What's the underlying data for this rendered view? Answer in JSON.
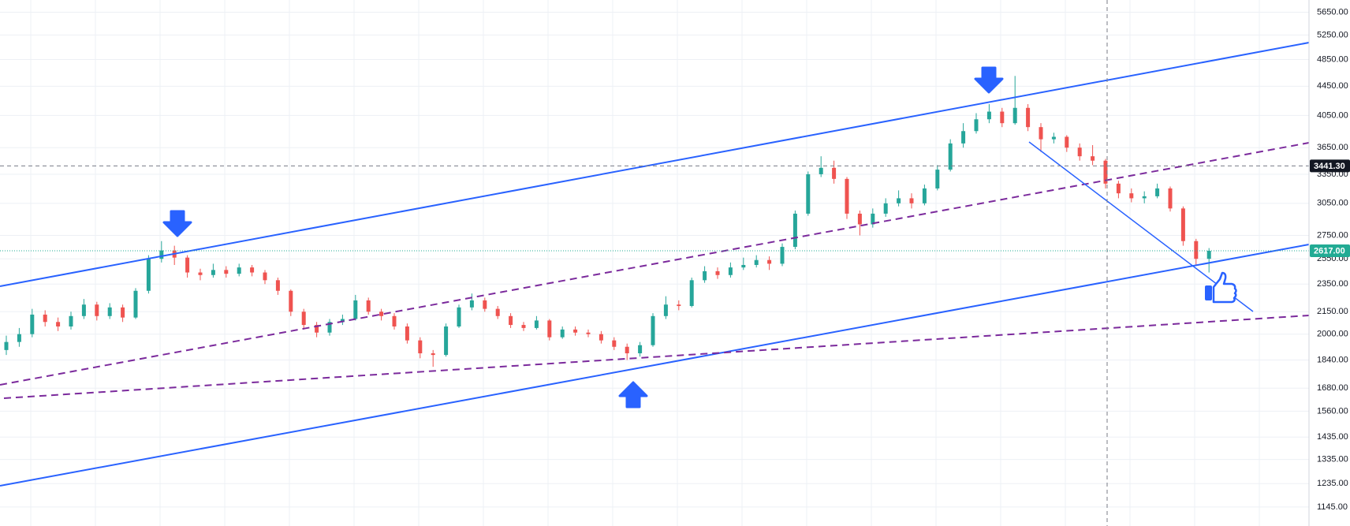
{
  "chart_data": {
    "type": "candlestick",
    "log_scale": true,
    "grid": true,
    "up_color": "#26a69a",
    "down_color": "#ef5350",
    "ylim": [
      1077,
      5877
    ],
    "yticks": [
      {
        "value": 5650,
        "label": "5650.00"
      },
      {
        "value": 5250,
        "label": "5250.00"
      },
      {
        "value": 4850,
        "label": "4850.00"
      },
      {
        "value": 4450,
        "label": "4450.00"
      },
      {
        "value": 4050,
        "label": "4050.00"
      },
      {
        "value": 3650,
        "label": "3650.00"
      },
      {
        "value": 3350,
        "label": "3350.00"
      },
      {
        "value": 3050,
        "label": "3050.00"
      },
      {
        "value": 2750,
        "label": "2750.00"
      },
      {
        "value": 2550,
        "label": "2550.00"
      },
      {
        "value": 2350,
        "label": "2350.00"
      },
      {
        "value": 2150,
        "label": "2150.00"
      },
      {
        "value": 2000,
        "label": "2000.00"
      },
      {
        "value": 1840,
        "label": "1840.00"
      },
      {
        "value": 1680,
        "label": "1680.00"
      },
      {
        "value": 1560,
        "label": "1560.00"
      },
      {
        "value": 1435,
        "label": "1435.00"
      },
      {
        "value": 1335,
        "label": "1335.00"
      },
      {
        "value": 1235,
        "label": "1235.00"
      },
      {
        "value": 1145,
        "label": "1145.00"
      }
    ],
    "price_labels": [
      {
        "value": 3441.3,
        "label": "3441.30",
        "color": "#131722",
        "line_color": "#787b86"
      },
      {
        "value": 2617,
        "label": "2617.00",
        "color": "#22ab94",
        "line_color": "#22ab94"
      }
    ],
    "open": [
      1900,
      1950,
      2000,
      2130,
      2080,
      2050,
      2120,
      2200,
      2120,
      2180,
      2110,
      2300,
      2550,
      2620,
      2560,
      2440,
      2420,
      2460,
      2430,
      2480,
      2440,
      2380,
      2300,
      2150,
      2060,
      2010,
      2080,
      2100,
      2230,
      2150,
      2120,
      2050,
      1960,
      1880,
      1870,
      2050,
      2180,
      2230,
      2170,
      2120,
      2060,
      2040,
      2090,
      1980,
      2030,
      2010,
      2000,
      1960,
      1920,
      1880,
      1930,
      2120,
      2200,
      2190,
      2380,
      2450,
      2420,
      2480,
      2500,
      2540,
      2510,
      2650,
      2950,
      3350,
      3420,
      3300,
      2950,
      2850,
      2950,
      3050,
      3100,
      3050,
      3200,
      3400,
      3700,
      3850,
      4000,
      4100,
      3950,
      4150,
      3900,
      3750,
      3780,
      3650,
      3550,
      3500,
      3250,
      3150,
      3100,
      3120,
      3200,
      3000,
      2700,
      2550
    ],
    "close": [
      1950,
      2000,
      2130,
      2080,
      2050,
      2120,
      2200,
      2120,
      2180,
      2110,
      2300,
      2550,
      2620,
      2560,
      2440,
      2420,
      2460,
      2430,
      2480,
      2440,
      2380,
      2300,
      2150,
      2060,
      2010,
      2080,
      2100,
      2230,
      2150,
      2120,
      2050,
      1960,
      1880,
      1870,
      2050,
      2180,
      2230,
      2170,
      2120,
      2060,
      2040,
      2090,
      1980,
      2030,
      2010,
      2000,
      1960,
      1920,
      1880,
      1930,
      2120,
      2200,
      2190,
      2380,
      2450,
      2420,
      2480,
      2500,
      2540,
      2510,
      2650,
      2950,
      3350,
      3420,
      3300,
      2950,
      2850,
      2950,
      3050,
      3100,
      3050,
      3200,
      3400,
      3700,
      3850,
      4000,
      4100,
      3950,
      4150,
      3900,
      3750,
      3780,
      3650,
      3550,
      3500,
      3250,
      3150,
      3100,
      3120,
      3200,
      3000,
      2700,
      2550,
      2617
    ],
    "high": [
      1990,
      2040,
      2170,
      2160,
      2110,
      2150,
      2240,
      2220,
      2210,
      2200,
      2320,
      2580,
      2700,
      2660,
      2580,
      2470,
      2510,
      2490,
      2510,
      2500,
      2460,
      2400,
      2310,
      2170,
      2080,
      2100,
      2130,
      2270,
      2250,
      2170,
      2140,
      2070,
      1980,
      1900,
      2070,
      2200,
      2280,
      2250,
      2190,
      2140,
      2080,
      2120,
      2100,
      2050,
      2050,
      2030,
      2020,
      1980,
      1940,
      1950,
      2140,
      2260,
      2230,
      2400,
      2490,
      2480,
      2520,
      2560,
      2580,
      2570,
      2680,
      2980,
      3380,
      3550,
      3500,
      3320,
      2980,
      3000,
      3100,
      3180,
      3150,
      3240,
      3450,
      3750,
      3950,
      4080,
      4200,
      4150,
      4600,
      4200,
      3950,
      3830,
      3800,
      3700,
      3680,
      3520,
      3280,
      3200,
      3170,
      3250,
      3220,
      3020,
      2720,
      2640
    ],
    "low": [
      1870,
      1920,
      1980,
      2050,
      2020,
      2030,
      2100,
      2090,
      2100,
      2080,
      2100,
      2280,
      2520,
      2500,
      2400,
      2380,
      2400,
      2400,
      2410,
      2410,
      2350,
      2270,
      2120,
      2030,
      1980,
      1990,
      2060,
      2090,
      2130,
      2090,
      2030,
      1940,
      1850,
      1800,
      1860,
      2040,
      2160,
      2150,
      2100,
      2040,
      2020,
      2030,
      1960,
      1970,
      1990,
      1980,
      1940,
      1900,
      1840,
      1860,
      1920,
      2100,
      2160,
      2180,
      2360,
      2390,
      2400,
      2460,
      2480,
      2460,
      2490,
      2630,
      2930,
      3320,
      3250,
      2900,
      2750,
      2820,
      2920,
      3020,
      3000,
      3030,
      3180,
      3380,
      3650,
      3820,
      3950,
      3900,
      3930,
      3850,
      3600,
      3700,
      3600,
      3500,
      3450,
      3200,
      3100,
      3060,
      3050,
      3100,
      2970,
      2660,
      2500,
      2440
    ]
  }
}
